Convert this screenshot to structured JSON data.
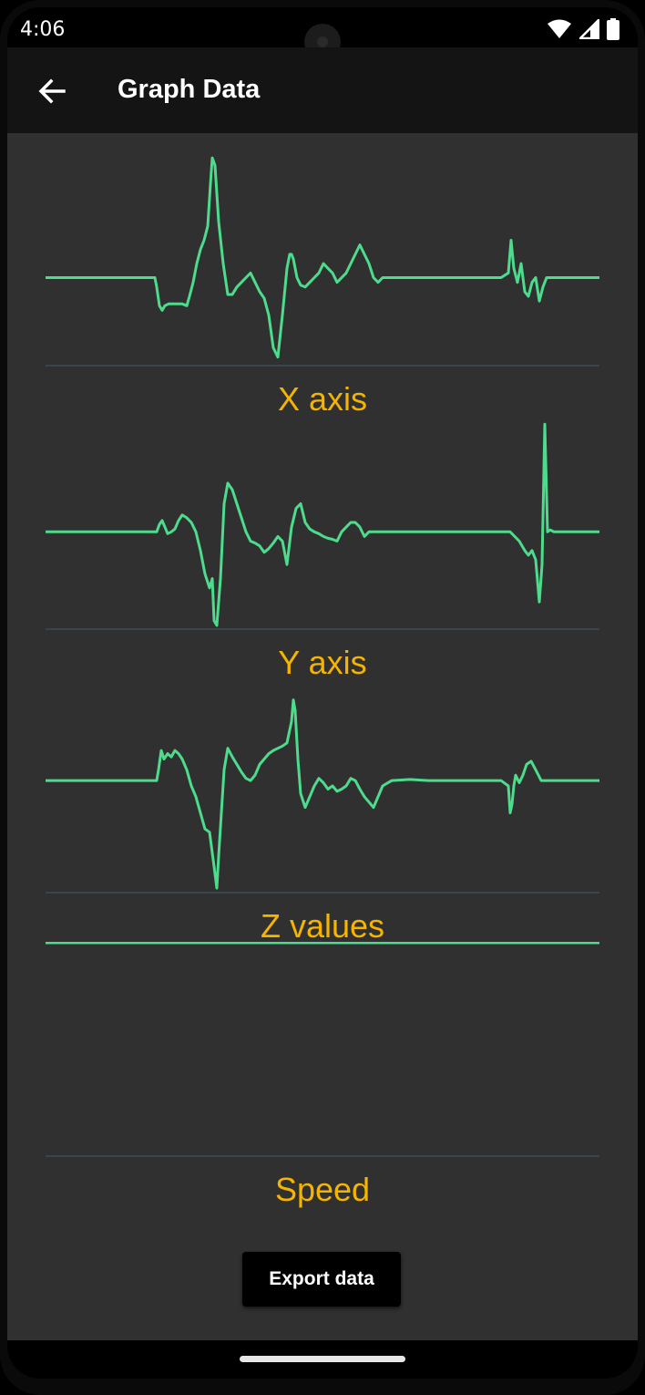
{
  "status_bar": {
    "time": "4:06",
    "icons": [
      "wifi-icon",
      "signal-icon",
      "battery-icon"
    ]
  },
  "app_bar": {
    "title": "Graph Data",
    "back_icon": "arrow-back-icon"
  },
  "colors": {
    "line": "#4ddb8c",
    "label": "#f5b400",
    "background": "#303030",
    "baseline": "#3d4a55"
  },
  "charts": [
    {
      "label": "X axis"
    },
    {
      "label": "Y axis"
    },
    {
      "label": "Z values"
    },
    {
      "label": "Speed"
    }
  ],
  "chart_data": [
    {
      "type": "line",
      "title": "X axis",
      "x": [
        0,
        25,
        50,
        75,
        100,
        120,
        122,
        125,
        128,
        131,
        135,
        140,
        145,
        150,
        155,
        158,
        162,
        166,
        170,
        174,
        178,
        181,
        183,
        186,
        190,
        195,
        200,
        205,
        210,
        215,
        220,
        225,
        230,
        235,
        240,
        245,
        250,
        255,
        260,
        265,
        268,
        270,
        272,
        274,
        276,
        280,
        285,
        290,
        295,
        300,
        305,
        310,
        315,
        320,
        325,
        330,
        335,
        340,
        345,
        350,
        355,
        360,
        365,
        370,
        375,
        380,
        385,
        390,
        395,
        400,
        405,
        410,
        420,
        430,
        440,
        460,
        480,
        500,
        508,
        511,
        514,
        518,
        522,
        526,
        530,
        534,
        538,
        542,
        546,
        550,
        560,
        580,
        608
      ],
      "y": [
        0,
        0,
        0,
        0,
        0,
        0,
        -10,
        -30,
        -35,
        -30,
        -28,
        -28,
        -28,
        -28,
        -30,
        -20,
        -5,
        15,
        30,
        40,
        55,
        100,
        128,
        120,
        60,
        15,
        -18,
        -18,
        -10,
        -5,
        0,
        5,
        -5,
        -15,
        -22,
        -40,
        -75,
        -85,
        -40,
        10,
        25,
        25,
        20,
        10,
        0,
        -8,
        -10,
        -5,
        0,
        5,
        15,
        10,
        5,
        -5,
        0,
        5,
        15,
        25,
        35,
        25,
        15,
        0,
        -5,
        0,
        0,
        0,
        0,
        0,
        0,
        0,
        0,
        0,
        0,
        0,
        0,
        0,
        0,
        0,
        5,
        40,
        10,
        -5,
        15,
        -15,
        -20,
        -5,
        0,
        -25,
        -10,
        0,
        0,
        0,
        0
      ]
    },
    {
      "type": "line",
      "title": "Y axis",
      "x": [
        0,
        50,
        100,
        122,
        125,
        128,
        131,
        134,
        138,
        142,
        146,
        150,
        155,
        160,
        165,
        170,
        175,
        180,
        183,
        185,
        188,
        192,
        196,
        200,
        205,
        210,
        215,
        220,
        225,
        230,
        235,
        240,
        245,
        250,
        255,
        260,
        265,
        270,
        275,
        280,
        285,
        290,
        295,
        300,
        305,
        310,
        315,
        320,
        325,
        330,
        335,
        340,
        345,
        350,
        355,
        360,
        370,
        380,
        400,
        420,
        440,
        460,
        480,
        500,
        510,
        520,
        526,
        530,
        534,
        538,
        542,
        545,
        548,
        551,
        554,
        558,
        570,
        590,
        608
      ],
      "y": [
        0,
        0,
        0,
        0,
        8,
        12,
        5,
        -2,
        0,
        3,
        12,
        18,
        15,
        10,
        0,
        -20,
        -45,
        -60,
        -50,
        -95,
        -100,
        -50,
        30,
        52,
        45,
        30,
        15,
        0,
        -10,
        -12,
        -15,
        -22,
        -18,
        -12,
        -5,
        -10,
        -35,
        5,
        25,
        30,
        10,
        3,
        0,
        -2,
        -5,
        -7,
        -8,
        -10,
        0,
        5,
        10,
        10,
        5,
        -5,
        0,
        0,
        0,
        0,
        0,
        0,
        0,
        0,
        0,
        0,
        0,
        -10,
        -20,
        -25,
        -20,
        -30,
        -75,
        -35,
        115,
        0,
        2,
        0,
        0,
        0,
        0
      ]
    },
    {
      "type": "line",
      "title": "Z values",
      "x": [
        0,
        50,
        100,
        122,
        124,
        127,
        130,
        134,
        138,
        142,
        146,
        150,
        155,
        160,
        165,
        170,
        175,
        180,
        185,
        188,
        190,
        193,
        196,
        200,
        205,
        210,
        215,
        220,
        225,
        230,
        235,
        240,
        245,
        250,
        255,
        260,
        265,
        270,
        272,
        274,
        277,
        280,
        285,
        290,
        295,
        300,
        305,
        310,
        315,
        320,
        325,
        330,
        335,
        340,
        345,
        350,
        355,
        360,
        370,
        380,
        400,
        420,
        440,
        460,
        480,
        500,
        508,
        510,
        512,
        514,
        516,
        520,
        524,
        528,
        533,
        538,
        544,
        546,
        550,
        570,
        590,
        608
      ],
      "y": [
        0,
        0,
        0,
        0,
        10,
        28,
        20,
        25,
        22,
        28,
        25,
        20,
        10,
        -5,
        -15,
        -30,
        -45,
        -48,
        -80,
        -100,
        -70,
        -30,
        10,
        30,
        22,
        15,
        8,
        2,
        0,
        5,
        15,
        20,
        25,
        28,
        30,
        32,
        35,
        55,
        75,
        65,
        20,
        -12,
        -25,
        -15,
        -5,
        2,
        -2,
        -8,
        -5,
        -10,
        -8,
        -5,
        2,
        0,
        -8,
        -15,
        -20,
        -25,
        -5,
        0,
        1,
        0,
        0,
        0,
        0,
        0,
        -5,
        -30,
        -22,
        -5,
        5,
        -2,
        5,
        15,
        18,
        10,
        0,
        0,
        0,
        0,
        0,
        0
      ]
    },
    {
      "type": "line",
      "title": "Speed",
      "x": [
        0,
        150,
        300,
        450,
        608
      ],
      "y": [
        0,
        0,
        0,
        0,
        0
      ]
    }
  ],
  "export_button": {
    "label": "Export data"
  }
}
